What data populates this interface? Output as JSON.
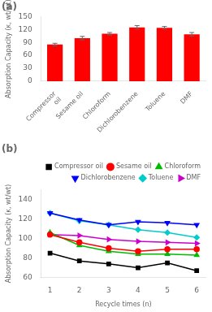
{
  "chart_data": [
    {
      "type": "bar",
      "title": "(a)",
      "categories": [
        "Compressor\noil",
        "Sesame oil",
        "Chloroform",
        "Dichlorobenzene",
        "Toluene",
        "DMF"
      ],
      "values": [
        85,
        100,
        110,
        125,
        124,
        109
      ],
      "errors": [
        3,
        4,
        3,
        4,
        3,
        4
      ],
      "color": "#FF0000",
      "y_label": "Absorption Capacity (κ, wt/wt)",
      "ylim": [
        0,
        150
      ],
      "yticks": [
        0,
        30,
        60,
        90,
        120,
        150
      ],
      "grid": false
    },
    {
      "type": "line",
      "title": "(b)",
      "x": [
        1,
        2,
        3,
        4,
        5,
        6
      ],
      "series": [
        {
          "name": "Compressor oil",
          "color": "#000000",
          "marker": "square",
          "values": [
            85,
            77,
            74,
            70,
            75,
            67
          ]
        },
        {
          "name": "Sesame oil",
          "color": "#FF0000",
          "marker": "circle",
          "values": [
            104,
            96,
            90,
            87,
            89,
            89
          ]
        },
        {
          "name": "Chloroform",
          "color": "#00BB00",
          "marker": "triangle",
          "values": [
            106,
            93,
            87,
            84,
            84,
            83
          ]
        },
        {
          "name": "Dichlorobenzene",
          "color": "#0000FF",
          "marker": "triangle_down",
          "values": [
            126,
            119,
            114,
            117,
            116,
            114
          ]
        },
        {
          "name": "Toluene",
          "color": "#00CCCC",
          "marker": "diamond",
          "values": [
            126,
            118,
            114,
            109,
            106,
            101
          ]
        },
        {
          "name": "DMF",
          "color": "#CC00CC",
          "marker": "triangle_right",
          "values": [
            104,
            103,
            99,
            97,
            96,
            95
          ]
        }
      ],
      "x_label": "Recycle times (n)",
      "y_label": "Absorption Capacity (κ, wt/wt)",
      "xlim": [
        0.7,
        6.3
      ],
      "xticks": [
        1,
        2,
        3,
        4,
        5,
        6
      ],
      "ylim": [
        60,
        150
      ],
      "yticks": [
        60,
        80,
        100,
        120,
        140
      ],
      "legend": "upper right",
      "grid": false
    }
  ]
}
